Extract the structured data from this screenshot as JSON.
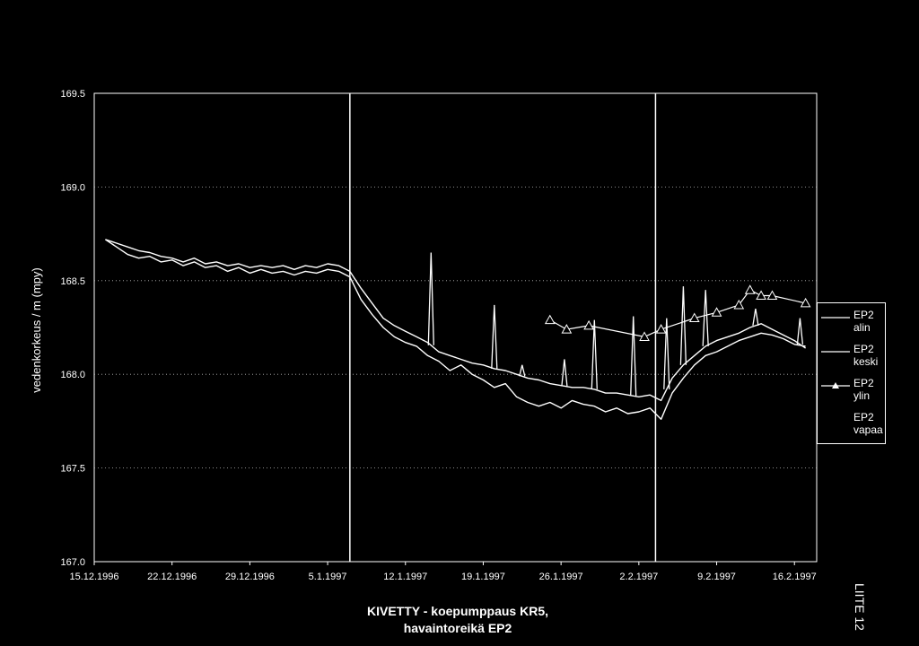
{
  "chart_data": {
    "type": "line",
    "title_line1": "KIVETTY - koepumppaus KR5,",
    "title_line2": "havaintoreikä EP2",
    "ylabel": "vedenkorkeus / m (mpy)",
    "xlabel": "",
    "ylim": [
      167.0,
      169.5
    ],
    "yticks": [
      167.0,
      167.5,
      168.0,
      168.5,
      169.0,
      169.5
    ],
    "ytick_labels": [
      "167.0",
      "167.5",
      "168.0",
      "168.5",
      "169.0",
      "169.5"
    ],
    "xlim_days": [
      0,
      65
    ],
    "xtick_days": [
      0,
      7,
      14,
      21,
      28,
      35,
      42,
      49,
      56,
      63
    ],
    "xtick_labels": [
      "15.12.1996",
      "22.12.1996",
      "29.12.1996",
      "5.1.1997",
      "12.1.1997",
      "19.1.1997",
      "26.1.1997",
      "2.2.1997",
      "9.2.1997",
      "16.2.1997"
    ],
    "vertical_markers_days": [
      23,
      50.5
    ],
    "grid": "horizontal dotted",
    "legend_position": "right",
    "side_label": "LIITE 12",
    "series": [
      {
        "name": "EP2 alin",
        "marker": "none",
        "x": [
          1,
          2,
          3,
          4,
          5,
          6,
          7,
          8,
          9,
          10,
          11,
          12,
          13,
          14,
          15,
          16,
          17,
          18,
          19,
          20,
          21,
          22,
          23,
          24,
          25,
          26,
          27,
          28,
          29,
          30,
          31,
          32,
          33,
          34,
          35,
          36,
          37,
          38,
          39,
          40,
          41,
          42,
          43,
          44,
          45,
          46,
          47,
          48,
          49,
          50,
          51,
          52,
          53,
          54,
          55,
          56,
          57,
          58,
          59,
          60,
          61,
          62,
          63,
          64
        ],
        "y": [
          168.72,
          168.68,
          168.64,
          168.62,
          168.63,
          168.6,
          168.61,
          168.58,
          168.6,
          168.57,
          168.58,
          168.55,
          168.57,
          168.54,
          168.56,
          168.54,
          168.55,
          168.53,
          168.55,
          168.54,
          168.56,
          168.55,
          168.52,
          168.4,
          168.32,
          168.25,
          168.2,
          168.17,
          168.15,
          168.1,
          168.07,
          168.02,
          168.05,
          168.0,
          167.97,
          167.93,
          167.95,
          167.88,
          167.85,
          167.83,
          167.85,
          167.82,
          167.86,
          167.84,
          167.83,
          167.8,
          167.82,
          167.79,
          167.8,
          167.82,
          167.76,
          167.9,
          167.98,
          168.05,
          168.1,
          168.12,
          168.15,
          168.18,
          168.2,
          168.22,
          168.21,
          168.19,
          168.16,
          168.15
        ]
      },
      {
        "name": "EP2 keski",
        "marker": "none",
        "x": [
          1,
          2,
          3,
          4,
          5,
          6,
          7,
          8,
          9,
          10,
          11,
          12,
          13,
          14,
          15,
          16,
          17,
          18,
          19,
          20,
          21,
          22,
          23,
          24,
          25,
          26,
          27,
          28,
          29,
          30,
          31,
          32,
          33,
          34,
          35,
          36,
          37,
          38,
          39,
          40,
          41,
          42,
          43,
          44,
          45,
          46,
          47,
          48,
          49,
          50,
          51,
          52,
          53,
          54,
          55,
          56,
          57,
          58,
          59,
          60,
          61,
          62,
          63,
          64
        ],
        "y": [
          168.72,
          168.7,
          168.68,
          168.66,
          168.65,
          168.63,
          168.62,
          168.6,
          168.62,
          168.59,
          168.6,
          168.58,
          168.59,
          168.57,
          168.58,
          168.57,
          168.58,
          168.56,
          168.58,
          168.57,
          168.59,
          168.58,
          168.55,
          168.46,
          168.38,
          168.3,
          168.26,
          168.23,
          168.2,
          168.17,
          168.12,
          168.1,
          168.08,
          168.06,
          168.05,
          168.03,
          168.02,
          168.0,
          167.98,
          167.97,
          167.95,
          167.94,
          167.93,
          167.93,
          167.92,
          167.9,
          167.9,
          167.89,
          167.88,
          167.89,
          167.86,
          167.98,
          168.05,
          168.1,
          168.15,
          168.18,
          168.2,
          168.22,
          168.25,
          168.27,
          168.24,
          168.21,
          168.18,
          168.14
        ]
      },
      {
        "name": "EP2 ylin",
        "marker": "triangle",
        "x": [
          41,
          42.5,
          44.5,
          49.5,
          51,
          54,
          56,
          58,
          59,
          60,
          61,
          64
        ],
        "y": [
          168.29,
          168.24,
          168.26,
          168.2,
          168.24,
          168.3,
          168.33,
          168.37,
          168.45,
          168.42,
          168.42,
          168.38
        ]
      },
      {
        "name": "EP2 vapaa",
        "marker": "none",
        "x": [],
        "y": []
      }
    ],
    "spikes": [
      {
        "x": 30.3,
        "y": 168.65
      },
      {
        "x": 36,
        "y": 168.37
      },
      {
        "x": 38.5,
        "y": 168.05
      },
      {
        "x": 42.3,
        "y": 168.08
      },
      {
        "x": 45,
        "y": 168.29
      },
      {
        "x": 48.5,
        "y": 168.31
      },
      {
        "x": 51.5,
        "y": 168.3
      },
      {
        "x": 53,
        "y": 168.47
      },
      {
        "x": 55,
        "y": 168.45
      },
      {
        "x": 59.5,
        "y": 168.35
      },
      {
        "x": 63.5,
        "y": 168.3
      }
    ]
  }
}
